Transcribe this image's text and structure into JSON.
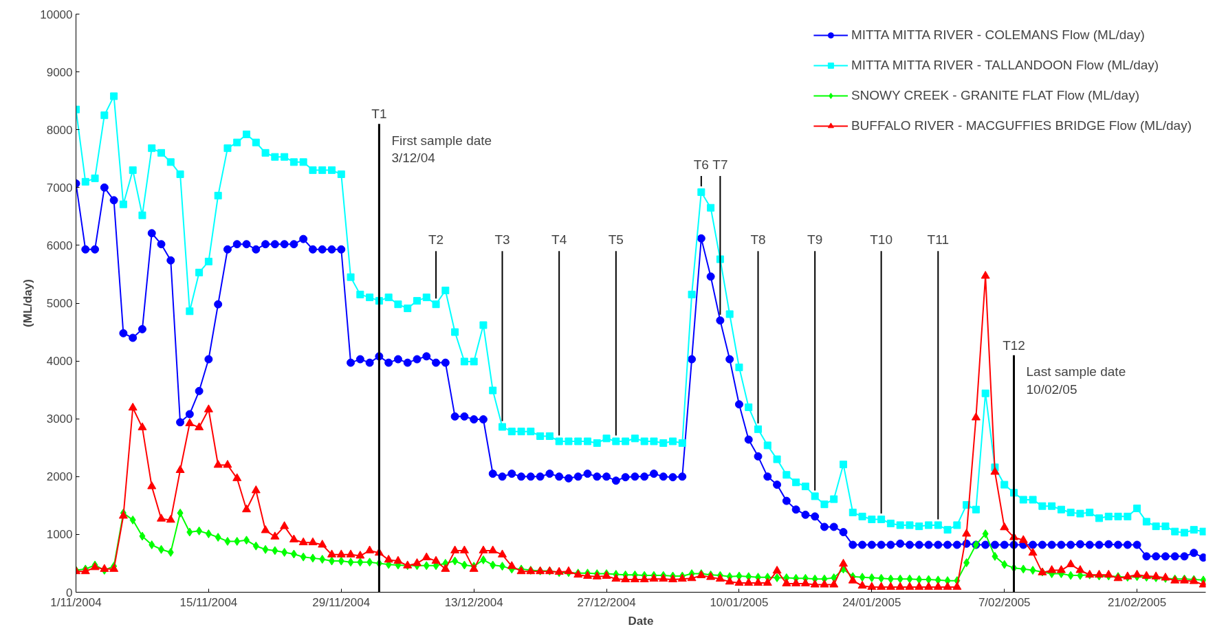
{
  "chart_data": {
    "type": "line",
    "xlabel": "Date",
    "ylabel": "(ML/day)",
    "x": [
      "2004-11-01",
      "2004-11-02",
      "2004-11-03",
      "2004-11-04",
      "2004-11-05",
      "2004-11-06",
      "2004-11-07",
      "2004-11-08",
      "2004-11-09",
      "2004-11-10",
      "2004-11-11",
      "2004-11-12",
      "2004-11-13",
      "2004-11-14",
      "2004-11-15",
      "2004-11-16",
      "2004-11-17",
      "2004-11-18",
      "2004-11-19",
      "2004-11-20",
      "2004-11-21",
      "2004-11-22",
      "2004-11-23",
      "2004-11-24",
      "2004-11-25",
      "2004-11-26",
      "2004-11-27",
      "2004-11-28",
      "2004-11-29",
      "2004-11-30",
      "2004-12-01",
      "2004-12-02",
      "2004-12-03",
      "2004-12-04",
      "2004-12-05",
      "2004-12-06",
      "2004-12-07",
      "2004-12-08",
      "2004-12-09",
      "2004-12-10",
      "2004-12-11",
      "2004-12-12",
      "2004-12-13",
      "2004-12-14",
      "2004-12-15",
      "2004-12-16",
      "2004-12-17",
      "2004-12-18",
      "2004-12-19",
      "2004-12-20",
      "2004-12-21",
      "2004-12-22",
      "2004-12-23",
      "2004-12-24",
      "2004-12-25",
      "2004-12-26",
      "2004-12-27",
      "2004-12-28",
      "2004-12-29",
      "2004-12-30",
      "2004-12-31",
      "2005-01-01",
      "2005-01-02",
      "2005-01-03",
      "2005-01-04",
      "2005-01-05",
      "2005-01-06",
      "2005-01-07",
      "2005-01-08",
      "2005-01-09",
      "2005-01-10",
      "2005-01-11",
      "2005-01-12",
      "2005-01-13",
      "2005-01-14",
      "2005-01-15",
      "2005-01-16",
      "2005-01-17",
      "2005-01-18",
      "2005-01-19",
      "2005-01-20",
      "2005-01-21",
      "2005-01-22",
      "2005-01-23",
      "2005-01-24",
      "2005-01-25",
      "2005-01-26",
      "2005-01-27",
      "2005-01-28",
      "2005-01-29",
      "2005-01-30",
      "2005-01-31",
      "2005-02-01",
      "2005-02-02",
      "2005-02-03",
      "2005-02-04",
      "2005-02-05",
      "2005-02-06",
      "2005-02-07",
      "2005-02-08",
      "2005-02-09",
      "2005-02-10",
      "2005-02-11",
      "2005-02-12",
      "2005-02-13",
      "2005-02-14",
      "2005-02-15",
      "2005-02-16",
      "2005-02-17",
      "2005-02-18",
      "2005-02-19",
      "2005-02-20",
      "2005-02-21",
      "2005-02-22",
      "2005-02-23",
      "2005-02-24",
      "2005-02-25",
      "2005-02-26",
      "2005-02-27",
      "2005-02-28"
    ],
    "series": [
      {
        "name": "MITTA MITTA RIVER - COLEMANS Flow (ML/day)",
        "color": "#0000ff",
        "marker": "circle",
        "values": [
          7070,
          5930,
          5930,
          7000,
          6780,
          4480,
          4400,
          4550,
          6210,
          6020,
          5740,
          2940,
          3080,
          3480,
          4030,
          4980,
          5930,
          6020,
          6020,
          5930,
          6020,
          6020,
          6020,
          6020,
          6110,
          5930,
          5930,
          5930,
          5930,
          3970,
          4030,
          3970,
          4080,
          3970,
          4030,
          3970,
          4030,
          4080,
          3970,
          3970,
          3040,
          3040,
          2990,
          2990,
          2050,
          2000,
          2050,
          2000,
          2000,
          2000,
          2050,
          2000,
          1970,
          2000,
          2050,
          2000,
          2000,
          1930,
          1990,
          2000,
          2000,
          2050,
          2000,
          1990,
          2000,
          4030,
          6120,
          5460,
          4700,
          4030,
          3250,
          2640,
          2350,
          2000,
          1860,
          1580,
          1430,
          1340,
          1310,
          1130,
          1130,
          1040,
          820,
          820,
          820,
          820,
          820,
          840,
          820,
          820,
          820,
          820,
          820,
          820,
          840,
          820,
          820,
          820,
          820,
          820,
          820,
          820,
          820,
          820,
          820,
          820,
          830,
          820,
          820,
          830,
          820,
          820,
          820,
          620,
          620,
          620,
          620,
          620,
          680,
          600
        ]
      },
      {
        "name": "MITTA MITTA RIVER - TALLANDOON Flow (ML/day)",
        "color": "#00ffff",
        "marker": "square",
        "values": [
          8350,
          7100,
          7160,
          8250,
          8580,
          6710,
          7300,
          6520,
          7680,
          7600,
          7440,
          7230,
          4860,
          5530,
          5720,
          6860,
          7680,
          7780,
          7920,
          7780,
          7600,
          7530,
          7530,
          7440,
          7440,
          7300,
          7300,
          7300,
          7230,
          5450,
          5150,
          5100,
          5040,
          5100,
          4980,
          4910,
          5040,
          5100,
          4980,
          5220,
          4500,
          3990,
          3990,
          4620,
          3490,
          2860,
          2780,
          2780,
          2780,
          2700,
          2700,
          2610,
          2610,
          2610,
          2610,
          2580,
          2660,
          2610,
          2610,
          2660,
          2610,
          2610,
          2580,
          2610,
          2580,
          5150,
          6920,
          6650,
          5760,
          4810,
          3890,
          3200,
          2820,
          2540,
          2300,
          2030,
          1900,
          1830,
          1660,
          1520,
          1610,
          2210,
          1380,
          1310,
          1260,
          1260,
          1190,
          1160,
          1160,
          1140,
          1160,
          1160,
          1080,
          1160,
          1510,
          1430,
          3440,
          2160,
          1860,
          1720,
          1600,
          1600,
          1490,
          1490,
          1430,
          1380,
          1360,
          1380,
          1280,
          1310,
          1310,
          1310,
          1450,
          1220,
          1140,
          1140,
          1050,
          1030,
          1080,
          1050
        ]
      },
      {
        "name": "SNOWY CREEK - GRANITE FLAT Flow (ML/day)",
        "color": "#00ff00",
        "marker": "diamond",
        "values": [
          380,
          400,
          470,
          380,
          450,
          1370,
          1250,
          970,
          820,
          740,
          690,
          1370,
          1040,
          1060,
          1010,
          950,
          880,
          880,
          900,
          800,
          740,
          720,
          690,
          660,
          610,
          590,
          570,
          540,
          540,
          520,
          520,
          520,
          500,
          480,
          470,
          460,
          460,
          460,
          460,
          500,
          540,
          470,
          450,
          560,
          470,
          450,
          400,
          400,
          380,
          370,
          370,
          340,
          340,
          330,
          330,
          320,
          320,
          310,
          300,
          300,
          290,
          290,
          290,
          280,
          280,
          320,
          320,
          300,
          290,
          270,
          280,
          270,
          260,
          260,
          250,
          250,
          240,
          240,
          230,
          230,
          250,
          400,
          270,
          260,
          250,
          240,
          230,
          230,
          230,
          220,
          220,
          210,
          200,
          200,
          510,
          820,
          1010,
          620,
          480,
          420,
          400,
          380,
          350,
          320,
          320,
          290,
          290,
          300,
          280,
          280,
          270,
          260,
          270,
          260,
          250,
          240,
          230,
          230,
          220,
          210
        ]
      },
      {
        "name": "BUFFALO RIVER - MACGUFFIES BRIDGE Flow (ML/day)",
        "color": "#ff0000",
        "marker": "triangle",
        "values": [
          360,
          360,
          430,
          400,
          400,
          1320,
          3190,
          2850,
          1830,
          1270,
          1250,
          2110,
          2920,
          2850,
          3160,
          2200,
          2200,
          1970,
          1430,
          1760,
          1070,
          960,
          1140,
          910,
          860,
          860,
          820,
          650,
          650,
          650,
          630,
          720,
          680,
          560,
          540,
          460,
          500,
          600,
          540,
          400,
          720,
          720,
          400,
          720,
          720,
          650,
          450,
          360,
          360,
          360,
          360,
          350,
          360,
          300,
          280,
          270,
          280,
          230,
          220,
          220,
          220,
          230,
          230,
          220,
          230,
          240,
          290,
          260,
          230,
          180,
          160,
          160,
          160,
          160,
          370,
          150,
          150,
          150,
          130,
          130,
          130,
          490,
          200,
          110,
          90,
          90,
          90,
          90,
          90,
          90,
          90,
          90,
          90,
          90,
          1010,
          3020,
          5470,
          2080,
          1120,
          950,
          900,
          680,
          340,
          380,
          380,
          480,
          380,
          300,
          300,
          300,
          240,
          270,
          300,
          280,
          270,
          250,
          200,
          200,
          190,
          130
        ]
      }
    ],
    "xlim": [
      "2004-11-01",
      "2005-02-28T06:00"
    ],
    "xticks": [
      {
        "value": "2004-11-01",
        "label": "1/11/2004"
      },
      {
        "value": "2004-11-15",
        "label": "15/11/2004"
      },
      {
        "value": "2004-11-29",
        "label": "29/11/2004"
      },
      {
        "value": "2004-12-13",
        "label": "13/12/2004"
      },
      {
        "value": "2004-12-27",
        "label": "27/12/2004"
      },
      {
        "value": "2005-01-10",
        "label": "10/01/2005"
      },
      {
        "value": "2005-01-24",
        "label": "24/01/2005"
      },
      {
        "value": "2005-02-07",
        "label": "7/02/2005"
      },
      {
        "value": "2005-02-21",
        "label": "21/02/2005"
      }
    ],
    "ylim": [
      0,
      10000
    ],
    "yticks": [
      0,
      1000,
      2000,
      3000,
      4000,
      5000,
      6000,
      7000,
      8000,
      9000,
      10000
    ],
    "grid": false,
    "legend": "top right",
    "line_style": "solid",
    "ref_lines": [
      {
        "axis": "x",
        "value": "2004-12-03",
        "label": "T1",
        "color": "#000000"
      },
      {
        "axis": "x",
        "value": "2005-02-08",
        "label": "T12",
        "color": "#000000"
      }
    ],
    "annotations": [
      "First sample date\n3/12/04",
      "Last sample date\n10/02/05",
      {
        "text": "T2",
        "x": "2004-12-09",
        "y": 4980
      },
      {
        "text": "T3",
        "x": "2004-12-16",
        "y": 2860
      },
      {
        "text": "T4",
        "x": "2004-12-22",
        "y": 2610
      },
      {
        "text": "T5",
        "x": "2004-12-28",
        "y": 2610
      },
      {
        "text": "T6",
        "x": "2005-01-06",
        "y": 6920
      },
      {
        "text": "T7",
        "x": "2005-01-08",
        "y": 4700
      },
      {
        "text": "T8",
        "x": "2005-01-12",
        "y": 2820
      },
      {
        "text": "T9",
        "x": "2005-01-18",
        "y": 1660
      },
      {
        "text": "T10",
        "x": "2005-01-25",
        "y": 1260
      },
      {
        "text": "T11",
        "x": "2005-01-31",
        "y": 1160
      }
    ]
  }
}
